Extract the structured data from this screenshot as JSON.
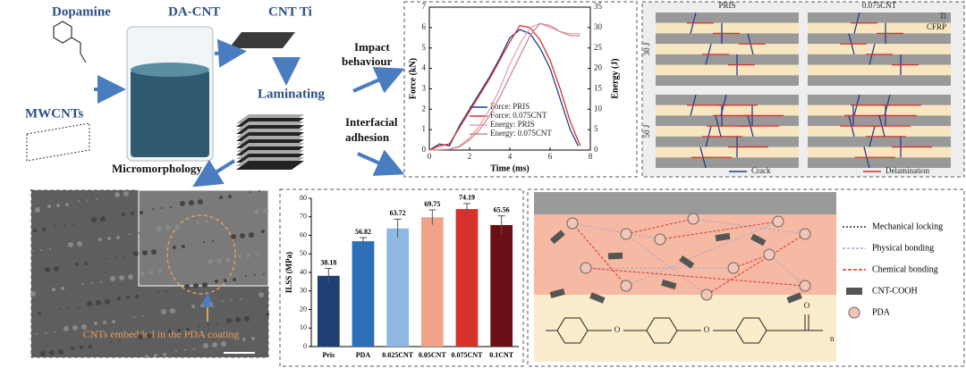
{
  "process": {
    "dopamine": "Dopamine",
    "da_cnt": "DA-CNT",
    "cnt_ti": "CNT Ti",
    "mwcnts": "MWCNTs",
    "laminating": "Laminating",
    "impact": [
      "Impact",
      "behaviour"
    ],
    "interfacial": [
      "Interfacial",
      "adhesion"
    ],
    "micromorphology": "Micromorphology"
  },
  "impact_chart": {
    "type": "line",
    "x_label": "Time (ms)",
    "y_label": "Force (kN)",
    "y2_label": "Energy (J)",
    "xlim": [
      0,
      8
    ],
    "xticks": [
      0,
      2,
      4,
      6,
      8
    ],
    "ylim": [
      0,
      7
    ],
    "yticks": [
      0,
      1,
      2,
      3,
      4,
      5,
      6,
      7
    ],
    "y2lim": [
      0,
      35
    ],
    "y2ticks": [
      0,
      5,
      10,
      15,
      20,
      25,
      30,
      35
    ],
    "series": [
      {
        "name": "Force: PRIS",
        "color": "#1f3f8f",
        "x": [
          0,
          0.5,
          1,
          1.5,
          2,
          2.5,
          3,
          3.5,
          4,
          4.5,
          5,
          5.5,
          6,
          6.5,
          7,
          7.4
        ],
        "values": [
          0,
          0.3,
          0.2,
          1.2,
          2,
          2.8,
          3.6,
          4.5,
          5.5,
          5.9,
          5.7,
          5,
          4,
          2.5,
          1,
          0.2
        ]
      },
      {
        "name": "Force: 0.075CNT",
        "color": "#d9312b",
        "x": [
          0,
          0.5,
          1,
          1.5,
          2,
          2.5,
          3,
          3.5,
          4,
          4.5,
          5,
          5.5,
          6,
          6.5,
          7,
          7.5
        ],
        "values": [
          0,
          0.2,
          0.3,
          1.1,
          1.9,
          2.7,
          3.5,
          4.4,
          5.3,
          6.1,
          6,
          5.4,
          4.4,
          3,
          1.4,
          0.2
        ]
      },
      {
        "name": "Energy: PRIS",
        "color": "#e6a6b0",
        "axis": "y2",
        "x": [
          0,
          1,
          1.5,
          2,
          2.5,
          3,
          3.5,
          4,
          4.5,
          5,
          5.5,
          6,
          6.5,
          7,
          7.5
        ],
        "values": [
          0,
          0.2,
          1,
          3,
          6,
          10,
          15,
          21,
          26,
          30,
          31,
          30,
          29,
          28.5,
          28.5
        ]
      },
      {
        "name": "Energy: 0.075CNT",
        "color": "#c98a92",
        "axis": "y2",
        "x": [
          0,
          1,
          1.5,
          2,
          2.5,
          3,
          3.5,
          4,
          4.5,
          5,
          5.5,
          6,
          6.5,
          7,
          7.5
        ],
        "values": [
          0,
          0.2,
          0.8,
          2.5,
          5,
          8.5,
          13,
          18,
          23,
          28,
          31,
          30.5,
          29,
          28,
          28
        ]
      }
    ]
  },
  "damage": {
    "columns": [
      "PRIS",
      "0.075CNT"
    ],
    "rows": [
      "30 J",
      "50 J"
    ],
    "layers": [
      "Ti",
      "CFRP"
    ],
    "legend": [
      "Crack",
      "Delamination"
    ]
  },
  "sem": {
    "caption": "CNTs embedded in the PDA coating"
  },
  "ilss_chart": {
    "type": "bar",
    "y_label": "ILSS (MPa)",
    "categories": [
      "Pris",
      "PDA",
      "0.025CNT",
      "0.05CNT",
      "0.075CNT",
      "0.1CNT"
    ],
    "values": [
      38.18,
      56.82,
      63.72,
      69.75,
      74.19,
      65.56
    ],
    "errors": [
      4,
      2,
      5,
      4,
      3,
      5
    ],
    "colors": [
      "#1f3f73",
      "#2e6fb7",
      "#8fb9e3",
      "#f0a38a",
      "#d6312b",
      "#6b0f16"
    ],
    "ylim": [
      0,
      80
    ],
    "yticks": [
      0,
      10,
      20,
      30,
      40,
      50,
      60,
      70,
      80
    ]
  },
  "mechanism": {
    "legend": [
      "Mechanical locking",
      "Physical bonding",
      "Chemical bonding",
      "CNT-COOH",
      "PDA"
    ],
    "oxygen": "O",
    "repeat": "n"
  }
}
